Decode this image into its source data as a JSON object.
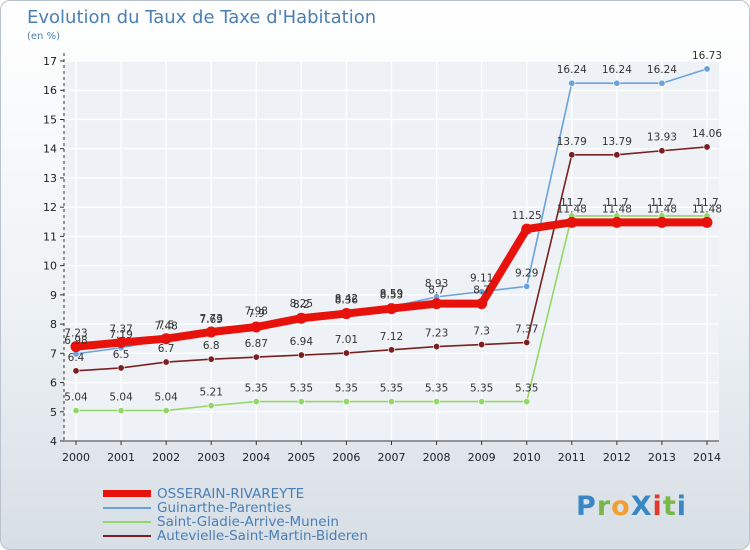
{
  "title": "Evolution du Taux de Taxe d'Habitation",
  "unit_label": "(en %)",
  "logo": {
    "text": "ProXiti",
    "colors": [
      "#3a87c8",
      "#7ab648",
      "#f0a030",
      "#3a87c8",
      "#e23a2c",
      "#7ab648",
      "#3a87c8"
    ]
  },
  "chart_data": {
    "type": "line",
    "title": "Evolution du Taux de Taxe d'Habitation",
    "ylabel": "(en %)",
    "xlabel": "",
    "x": [
      "2000",
      "2001",
      "2002",
      "2003",
      "2004",
      "2005",
      "2006",
      "2007",
      "2008",
      "2009",
      "2010",
      "2011",
      "2012",
      "2013",
      "2014"
    ],
    "ylim": [
      4,
      17
    ],
    "yticks": [
      4,
      5,
      6,
      7,
      8,
      9,
      10,
      11,
      12,
      13,
      14,
      15,
      16,
      17
    ],
    "grid": true,
    "legend_position": "bottom-left",
    "series": [
      {
        "name": "OSSERAIN-RIVAREYTE",
        "color": "#e8120c",
        "bold": true,
        "values": [
          7.23,
          7.37,
          7.5,
          7.73,
          7.9,
          8.2,
          8.36,
          8.53,
          8.7,
          8.7,
          11.25,
          11.48,
          11.48,
          11.48,
          11.48
        ],
        "labels": [
          "7.23",
          "7.37",
          "7.5",
          "7.73",
          "7.9",
          "8.2",
          "8.36",
          "8.53",
          "8.7",
          "8.7",
          "11.25",
          "11.48",
          "11.48",
          "11.48",
          "11.48"
        ]
      },
      {
        "name": "Guinarthe-Parenties",
        "color": "#6aa3dc",
        "bold": false,
        "values": [
          6.98,
          7.19,
          7.48,
          7.69,
          7.98,
          8.25,
          8.42,
          8.59,
          8.93,
          9.11,
          9.29,
          16.24,
          16.24,
          16.24,
          16.73
        ],
        "labels": [
          "6.98",
          "7.19",
          "7.48",
          "7.69",
          "7.98",
          "8.25",
          "8.42",
          "8.59",
          "8.93",
          "9.11",
          "9.29",
          "16.24",
          "16.24",
          "16.24",
          "16.73"
        ]
      },
      {
        "name": "Saint-Gladie-Arrive-Munein",
        "color": "#93d766",
        "bold": false,
        "values": [
          5.04,
          5.04,
          5.04,
          5.21,
          5.35,
          5.35,
          5.35,
          5.35,
          5.35,
          5.35,
          5.35,
          11.7,
          11.7,
          11.7,
          11.7
        ],
        "labels": [
          "5.04",
          "5.04",
          "5.04",
          "5.21",
          "5.35",
          "5.35",
          "5.35",
          "5.35",
          "5.35",
          "5.35",
          "5.35",
          "11.7",
          "11.7",
          "11.7",
          "11.7"
        ]
      },
      {
        "name": "Autevielle-Saint-Martin-Bideren",
        "color": "#7b2020",
        "bold": false,
        "values": [
          6.4,
          6.5,
          6.7,
          6.8,
          6.87,
          6.94,
          7.01,
          7.12,
          7.23,
          7.3,
          7.37,
          13.79,
          13.79,
          13.93,
          14.06
        ],
        "labels": [
          "6.4",
          "6.5",
          "6.7",
          "6.8",
          "6.87",
          "6.94",
          "7.01",
          "7.12",
          "7.23",
          "7.3",
          "7.37",
          "13.79",
          "13.79",
          "13.93",
          "14.06"
        ]
      }
    ]
  }
}
